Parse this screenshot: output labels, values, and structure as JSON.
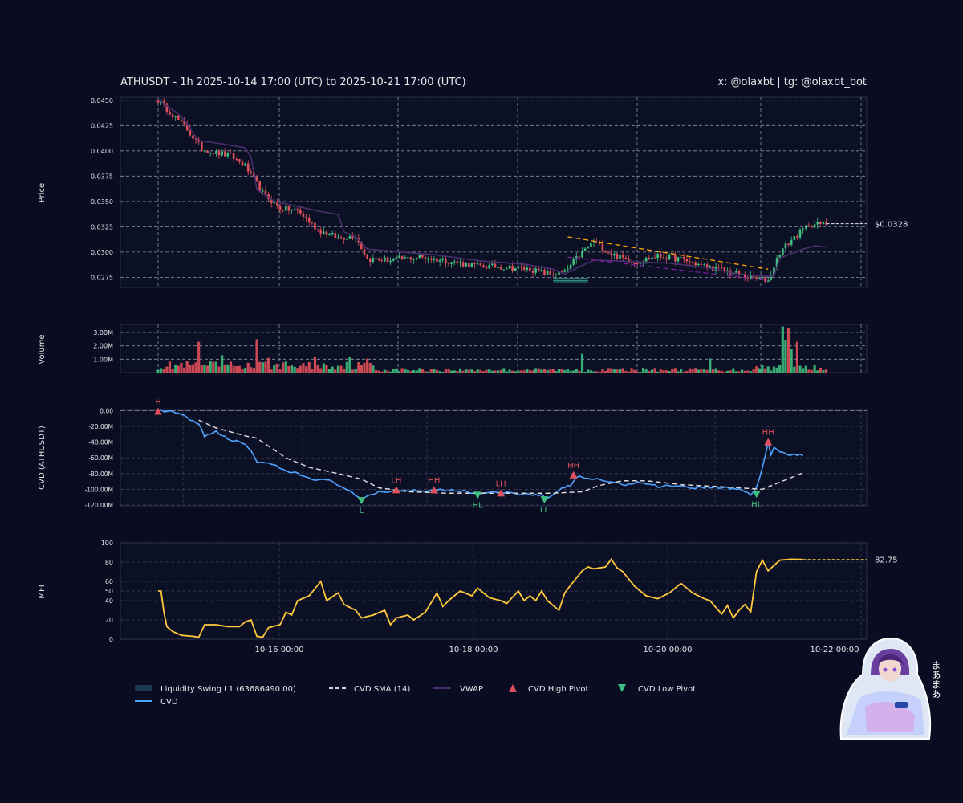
{
  "header": {
    "title": "ATHUSDT - 1h 2025-10-14 17:00 (UTC) to 2025-10-21 17:00 (UTC)",
    "credit": "x: @olaxbt | tg: @olaxbt_bot"
  },
  "colors": {
    "background": "#0a0d22",
    "up": "#3fbf7f",
    "down": "#e0505a",
    "cvd": "#4da3ff",
    "cvd_sma": "#d8d8d8",
    "vwap": "#4a2f6e",
    "mfi": "#ffc83d",
    "trendline": "#ffa500",
    "support": "#7a1f9a",
    "liquidity_zone": "#1f5e5c"
  },
  "x_axis": {
    "ticks": [
      "10-16 00:00",
      "10-18 00:00",
      "10-20 00:00",
      "10-22 00:00"
    ]
  },
  "legend": [
    {
      "label": "Liquidity Swing L1 (63686490.00)",
      "icon": "zone-swatch"
    },
    {
      "label": "CVD",
      "icon": "solid-line"
    },
    {
      "label": "CVD SMA (14)",
      "icon": "dashed-line"
    },
    {
      "label": "VWAP",
      "icon": "solid-line"
    },
    {
      "label": "CVD High Pivot",
      "icon": "triangle-up"
    },
    {
      "label": "CVD Low Pivot",
      "icon": "triangle-down"
    }
  ],
  "badge": {
    "text": "まあまあ",
    "icon": "hooded-character-sticker"
  },
  "chart_data": [
    {
      "type": "candlestick",
      "ylabel": "Price",
      "ylim": [
        0.0265,
        0.0453
      ],
      "yticks": [
        "0.0275",
        "0.0300",
        "0.0325",
        "0.0350",
        "0.0375",
        "0.0400",
        "0.0425",
        "0.0450"
      ],
      "grid": true,
      "last_price_label": "$0.0328",
      "last_price": 0.0328,
      "close_anchors": [
        [
          0,
          0.045
        ],
        [
          5,
          0.0436
        ],
        [
          10,
          0.0421
        ],
        [
          15,
          0.0402
        ],
        [
          20,
          0.0398
        ],
        [
          25,
          0.0395
        ],
        [
          30,
          0.0385
        ],
        [
          36,
          0.0358
        ],
        [
          42,
          0.0343
        ],
        [
          48,
          0.0341
        ],
        [
          55,
          0.0322
        ],
        [
          62,
          0.0314
        ],
        [
          68,
          0.0316
        ],
        [
          72,
          0.0293
        ],
        [
          80,
          0.0292
        ],
        [
          90,
          0.0295
        ],
        [
          100,
          0.0291
        ],
        [
          110,
          0.0286
        ],
        [
          120,
          0.0285
        ],
        [
          128,
          0.0283
        ],
        [
          135,
          0.0278
        ],
        [
          140,
          0.028
        ],
        [
          146,
          0.03
        ],
        [
          150,
          0.031
        ],
        [
          156,
          0.0298
        ],
        [
          164,
          0.029
        ],
        [
          172,
          0.0296
        ],
        [
          180,
          0.0293
        ],
        [
          188,
          0.0286
        ],
        [
          196,
          0.0281
        ],
        [
          202,
          0.0276
        ],
        [
          210,
          0.0272
        ],
        [
          214,
          0.03
        ],
        [
          218,
          0.0312
        ],
        [
          224,
          0.0327
        ],
        [
          230,
          0.0328
        ]
      ],
      "vwap_anchors": [
        [
          0,
          0.0451
        ],
        [
          8,
          0.0434
        ],
        [
          14,
          0.041
        ],
        [
          22,
          0.0407
        ],
        [
          30,
          0.0403
        ],
        [
          32,
          0.0394
        ],
        [
          34,
          0.0362
        ],
        [
          40,
          0.035
        ],
        [
          48,
          0.0345
        ],
        [
          56,
          0.034
        ],
        [
          62,
          0.0337
        ],
        [
          64,
          0.032
        ],
        [
          68,
          0.0315
        ],
        [
          72,
          0.0303
        ],
        [
          80,
          0.0301
        ],
        [
          96,
          0.0297
        ],
        [
          112,
          0.0291
        ],
        [
          126,
          0.0288
        ],
        [
          136,
          0.0283
        ],
        [
          140,
          0.0278
        ],
        [
          144,
          0.0284
        ],
        [
          150,
          0.0292
        ],
        [
          160,
          0.0291
        ],
        [
          176,
          0.0289
        ],
        [
          190,
          0.0284
        ],
        [
          200,
          0.0278
        ],
        [
          208,
          0.0276
        ],
        [
          212,
          0.0276
        ],
        [
          214,
          0.0294
        ],
        [
          222,
          0.0303
        ],
        [
          226,
          0.0306
        ],
        [
          230,
          0.0305
        ]
      ],
      "resistance_line": {
        "from": [
          141,
          0.0315
        ],
        "to": [
          210,
          0.0283
        ]
      },
      "support_line": {
        "from": [
          141,
          0.0295
        ],
        "to": [
          210,
          0.0272
        ]
      },
      "liquidity_zone": {
        "from": 136,
        "to": 148,
        "y": [
          0.02695,
          0.02725
        ]
      }
    },
    {
      "type": "bar",
      "ylabel": "Volume",
      "ylim": [
        0,
        3600000
      ],
      "yticks": [
        "1.00M",
        "2.00M",
        "3.00M"
      ],
      "tick_values": [
        1000000,
        2000000,
        3000000
      ],
      "spikes": [
        [
          14,
          2300000
        ],
        [
          22,
          1300000
        ],
        [
          34,
          2500000
        ],
        [
          38,
          1100000
        ],
        [
          54,
          1200000
        ],
        [
          66,
          1200000
        ],
        [
          72,
          1050000
        ],
        [
          146,
          1400000
        ],
        [
          190,
          1050000
        ],
        [
          215,
          3450000
        ],
        [
          216,
          2400000
        ],
        [
          217,
          3300000
        ],
        [
          218,
          1800000
        ],
        [
          220,
          2300000
        ]
      ]
    },
    {
      "type": "line",
      "ylabel": "CVD (ATHUSDT)",
      "ylim": [
        -121000000,
        1500000
      ],
      "yticks": [
        "0.00",
        "-20.00M",
        "-40.00M",
        "-60.00M",
        "-80.00M",
        "-100.00M",
        "-120.00M"
      ],
      "tick_values": [
        0,
        -20000000,
        -40000000,
        -60000000,
        -80000000,
        -100000000,
        -120000000
      ],
      "cvd_anchors": [
        [
          0,
          0
        ],
        [
          5,
          -2000000
        ],
        [
          8,
          -5000000
        ],
        [
          12,
          -14000000
        ],
        [
          14,
          -18000000
        ],
        [
          16,
          -32000000
        ],
        [
          20,
          -27000000
        ],
        [
          24,
          -36000000
        ],
        [
          28,
          -40000000
        ],
        [
          30,
          -43000000
        ],
        [
          32,
          -50000000
        ],
        [
          34,
          -65000000
        ],
        [
          36,
          -66000000
        ],
        [
          40,
          -70000000
        ],
        [
          44,
          -77000000
        ],
        [
          48,
          -80000000
        ],
        [
          52,
          -86000000
        ],
        [
          56,
          -88000000
        ],
        [
          60,
          -90000000
        ],
        [
          64,
          -98000000
        ],
        [
          68,
          -108000000
        ],
        [
          70,
          -114000000
        ],
        [
          72,
          -108000000
        ],
        [
          76,
          -103000000
        ],
        [
          80,
          -103000000
        ],
        [
          84,
          -101000000
        ],
        [
          88,
          -101000000
        ],
        [
          92,
          -102000000
        ],
        [
          96,
          -100000000
        ],
        [
          100,
          -101000000
        ],
        [
          106,
          -103000000
        ],
        [
          110,
          -105000000
        ],
        [
          116,
          -104000000
        ],
        [
          122,
          -105000000
        ],
        [
          128,
          -106000000
        ],
        [
          132,
          -107000000
        ],
        [
          134,
          -112000000
        ],
        [
          136,
          -108000000
        ],
        [
          138,
          -102000000
        ],
        [
          140,
          -97000000
        ],
        [
          142,
          -95000000
        ],
        [
          144,
          -84000000
        ],
        [
          148,
          -86000000
        ],
        [
          154,
          -89000000
        ],
        [
          160,
          -94000000
        ],
        [
          166,
          -91000000
        ],
        [
          172,
          -96000000
        ],
        [
          178,
          -95000000
        ],
        [
          184,
          -98000000
        ],
        [
          190,
          -97000000
        ],
        [
          196,
          -98000000
        ],
        [
          200,
          -100000000
        ],
        [
          204,
          -106000000
        ],
        [
          206,
          -98000000
        ],
        [
          208,
          -73000000
        ],
        [
          210,
          -40000000
        ],
        [
          211,
          -56000000
        ],
        [
          212,
          -47000000
        ],
        [
          214,
          -52000000
        ],
        [
          216,
          -55000000
        ],
        [
          220,
          -57000000
        ],
        [
          222,
          -57000000
        ]
      ],
      "sma_anchors": [
        [
          14,
          -12000000
        ],
        [
          20,
          -22000000
        ],
        [
          30,
          -32000000
        ],
        [
          34,
          -35000000
        ],
        [
          44,
          -60000000
        ],
        [
          52,
          -72000000
        ],
        [
          62,
          -80000000
        ],
        [
          70,
          -87000000
        ],
        [
          76,
          -98000000
        ],
        [
          86,
          -103000000
        ],
        [
          100,
          -105000000
        ],
        [
          120,
          -105000000
        ],
        [
          136,
          -105000000
        ],
        [
          146,
          -103000000
        ],
        [
          152,
          -95000000
        ],
        [
          160,
          -89000000
        ],
        [
          168,
          -89000000
        ],
        [
          180,
          -94000000
        ],
        [
          190,
          -96000000
        ],
        [
          200,
          -98000000
        ],
        [
          208,
          -100000000
        ],
        [
          216,
          -88000000
        ],
        [
          222,
          -79000000
        ]
      ],
      "pivots": [
        {
          "kind": "high",
          "label": "H",
          "x": 0,
          "value": -1000000
        },
        {
          "kind": "low",
          "label": "L",
          "x": 70,
          "value": -114000000
        },
        {
          "kind": "high",
          "label": "LH",
          "x": 82,
          "value": -101000000
        },
        {
          "kind": "high",
          "label": "HH",
          "x": 95,
          "value": -101000000
        },
        {
          "kind": "low",
          "label": "HL",
          "x": 110,
          "value": -107000000
        },
        {
          "kind": "high",
          "label": "LH",
          "x": 118,
          "value": -105000000
        },
        {
          "kind": "low",
          "label": "LL",
          "x": 133,
          "value": -113000000
        },
        {
          "kind": "high",
          "label": "HH",
          "x": 143,
          "value": -82000000
        },
        {
          "kind": "low",
          "label": "HL",
          "x": 206,
          "value": -106000000
        },
        {
          "kind": "high",
          "label": "HH",
          "x": 210,
          "value": -40000000
        }
      ]
    },
    {
      "type": "line",
      "ylabel": "MFI",
      "ylim": [
        0,
        100
      ],
      "yticks": [
        "0",
        "20",
        "40",
        "50",
        "60",
        "80",
        "100"
      ],
      "tick_values": [
        0,
        20,
        40,
        50,
        60,
        80,
        100
      ],
      "last_value_label": "82.75",
      "last_value": 82.75,
      "mfi_anchors": [
        [
          0,
          50
        ],
        [
          1,
          50
        ],
        [
          2,
          28
        ],
        [
          3,
          13
        ],
        [
          5,
          8
        ],
        [
          8,
          4
        ],
        [
          12,
          3
        ],
        [
          14,
          2
        ],
        [
          16,
          15
        ],
        [
          20,
          15
        ],
        [
          24,
          13
        ],
        [
          28,
          13
        ],
        [
          30,
          18
        ],
        [
          32,
          20
        ],
        [
          34,
          3
        ],
        [
          36,
          2
        ],
        [
          38,
          12
        ],
        [
          42,
          15
        ],
        [
          44,
          28
        ],
        [
          46,
          25
        ],
        [
          48,
          40
        ],
        [
          52,
          45
        ],
        [
          56,
          60
        ],
        [
          58,
          40
        ],
        [
          62,
          48
        ],
        [
          64,
          36
        ],
        [
          68,
          30
        ],
        [
          70,
          22
        ],
        [
          74,
          25
        ],
        [
          78,
          30
        ],
        [
          80,
          15
        ],
        [
          82,
          22
        ],
        [
          86,
          25
        ],
        [
          88,
          20
        ],
        [
          92,
          28
        ],
        [
          96,
          48
        ],
        [
          98,
          34
        ],
        [
          100,
          40
        ],
        [
          104,
          50
        ],
        [
          108,
          45
        ],
        [
          110,
          53
        ],
        [
          114,
          43
        ],
        [
          118,
          40
        ],
        [
          120,
          37
        ],
        [
          124,
          50
        ],
        [
          126,
          40
        ],
        [
          128,
          45
        ],
        [
          130,
          40
        ],
        [
          132,
          50
        ],
        [
          134,
          40
        ],
        [
          136,
          35
        ],
        [
          138,
          30
        ],
        [
          140,
          48
        ],
        [
          142,
          56
        ],
        [
          146,
          71
        ],
        [
          148,
          75
        ],
        [
          150,
          73
        ],
        [
          154,
          75
        ],
        [
          156,
          83
        ],
        [
          158,
          74
        ],
        [
          160,
          70
        ],
        [
          164,
          55
        ],
        [
          168,
          45
        ],
        [
          172,
          42
        ],
        [
          176,
          48
        ],
        [
          180,
          58
        ],
        [
          184,
          48
        ],
        [
          188,
          42
        ],
        [
          190,
          40
        ],
        [
          194,
          26
        ],
        [
          196,
          35
        ],
        [
          198,
          22
        ],
        [
          200,
          30
        ],
        [
          202,
          36
        ],
        [
          204,
          28
        ],
        [
          206,
          70
        ],
        [
          208,
          82
        ],
        [
          210,
          71
        ],
        [
          214,
          82
        ],
        [
          218,
          83
        ],
        [
          222,
          82.75
        ]
      ]
    }
  ]
}
